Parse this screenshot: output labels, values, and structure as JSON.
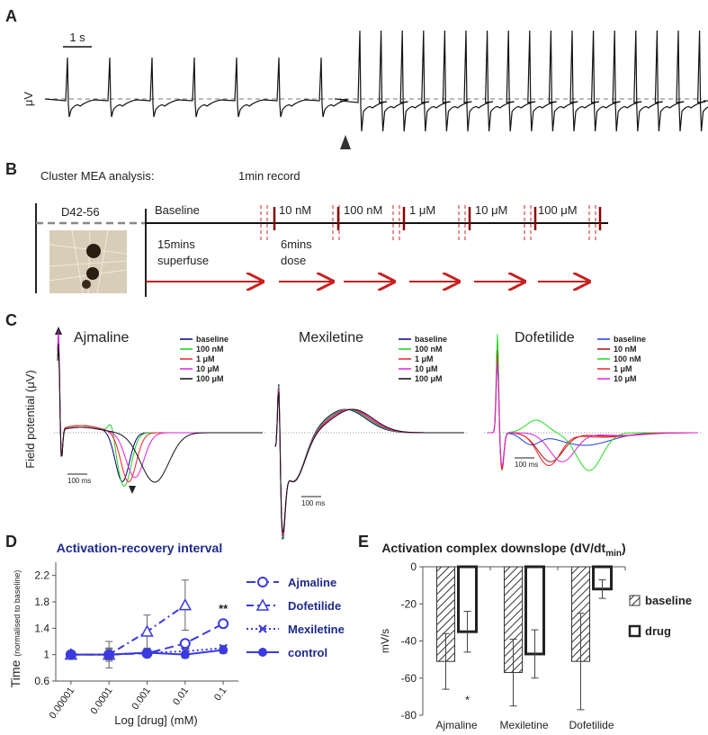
{
  "panel_labels": [
    "A",
    "B",
    "C",
    "D",
    "E"
  ],
  "panel_a": {
    "scale_label": "1 s",
    "y_label": "μV"
  },
  "panel_b": {
    "title": "Cluster MEA analysis:",
    "record_label": "1min record",
    "day_label": "D42-56",
    "baseline_label": "Baseline",
    "doses": [
      "10 nM",
      "100 nM",
      "1 μM",
      "10 μM",
      "100 μM"
    ],
    "superfuse_label": [
      "15mins",
      "superfuse"
    ],
    "dose_label": [
      "6mins",
      "dose"
    ]
  },
  "panel_c": {
    "y_label": "Field potential (μV)",
    "scale_label": "100 ms",
    "plots": [
      {
        "title": "Ajmaline",
        "legend": [
          {
            "name": "baseline",
            "color": "#000080"
          },
          {
            "name": "100 nM",
            "color": "#22cc22"
          },
          {
            "name": "1 μM",
            "color": "#ee2222"
          },
          {
            "name": "10 μM",
            "color": "#dd22dd"
          },
          {
            "name": "100 μM",
            "color": "#111111"
          }
        ]
      },
      {
        "title": "Mexiletine",
        "legend": [
          {
            "name": "baseline",
            "color": "#000080"
          },
          {
            "name": "100 nM",
            "color": "#22cc22"
          },
          {
            "name": "1 μM",
            "color": "#ee2222"
          },
          {
            "name": "10 μM",
            "color": "#dd22dd"
          },
          {
            "name": "100 μM",
            "color": "#111111"
          }
        ]
      },
      {
        "title": "Dofetilide",
        "legend": [
          {
            "name": "baseline",
            "color": "#1f3fdd"
          },
          {
            "name": "10 nM",
            "color": "#aa1111"
          },
          {
            "name": "100 nM",
            "color": "#22dd22"
          },
          {
            "name": "1 μM",
            "color": "#ee2222"
          },
          {
            "name": "10 μM",
            "color": "#dd22dd"
          }
        ]
      }
    ]
  },
  "chart_data": [
    {
      "type": "line",
      "title": "Activation-recovery interval",
      "y_label": "Time",
      "y_label_note": "(normalised to baseline)",
      "x_label": "Log [drug] (mM)",
      "x": [
        1e-05,
        0.0001,
        0.001,
        0.01,
        0.1
      ],
      "xlim": [
        4e-06,
        0.25
      ],
      "xticks": [
        1e-05,
        0.0001,
        0.001,
        0.01,
        0.1
      ],
      "log_x": true,
      "ylim": [
        0.6,
        2.4
      ],
      "yticks": [
        0.6,
        1,
        1.4,
        1.8,
        2.2
      ],
      "annotation": "**",
      "series": [
        {
          "name": "Ajmaline",
          "color": "#3a3ae0",
          "dash": "dashed",
          "marker": "open-circle",
          "values": [
            1,
            1,
            1.02,
            1.17,
            1.47
          ],
          "errors": [
            0.05,
            0.1,
            0.03,
            0.04,
            0.05
          ]
        },
        {
          "name": "Dofetilide",
          "color": "#3a3ae0",
          "dash": "dash-dot",
          "marker": "open-triangle",
          "values": [
            1,
            1,
            1.35,
            1.75,
            null
          ],
          "errors": [
            0.05,
            0.08,
            0.25,
            0.38,
            null
          ]
        },
        {
          "name": "Mexiletine",
          "color": "#3a3ae0",
          "dash": "dotted",
          "marker": "cross",
          "values": [
            1,
            1,
            1.03,
            1.05,
            1.1
          ],
          "errors": [
            0.04,
            0.1,
            0.03,
            0.03,
            0.04
          ]
        },
        {
          "name": "control",
          "color": "#3a3ae0",
          "dash": "solid",
          "marker": "filled-circle",
          "values": [
            1,
            1,
            1.03,
            1,
            1.07
          ],
          "errors": [
            0.06,
            0.2,
            0.04,
            0.05,
            0.05
          ]
        }
      ]
    },
    {
      "type": "bar",
      "title": "Activation complex downslope (dV/dt",
      "title_sub": "min",
      "title_end": ")",
      "y_label": "mV/s",
      "categories": [
        "Ajmaline",
        "Mexiletine",
        "Dofetilide"
      ],
      "ylim": [
        -80,
        0
      ],
      "yticks": [
        0,
        -20,
        -40,
        -60,
        -80
      ],
      "annotation": "*",
      "series": [
        {
          "name": "baseline",
          "color": "#333333",
          "fill": "hatch",
          "values": [
            -51,
            -57,
            -51
          ],
          "errors": [
            15,
            18,
            26
          ]
        },
        {
          "name": "drug",
          "color": "#222222",
          "fill": "open",
          "values": [
            -35,
            -47,
            -12
          ],
          "errors": [
            11,
            13,
            5
          ]
        }
      ]
    }
  ]
}
